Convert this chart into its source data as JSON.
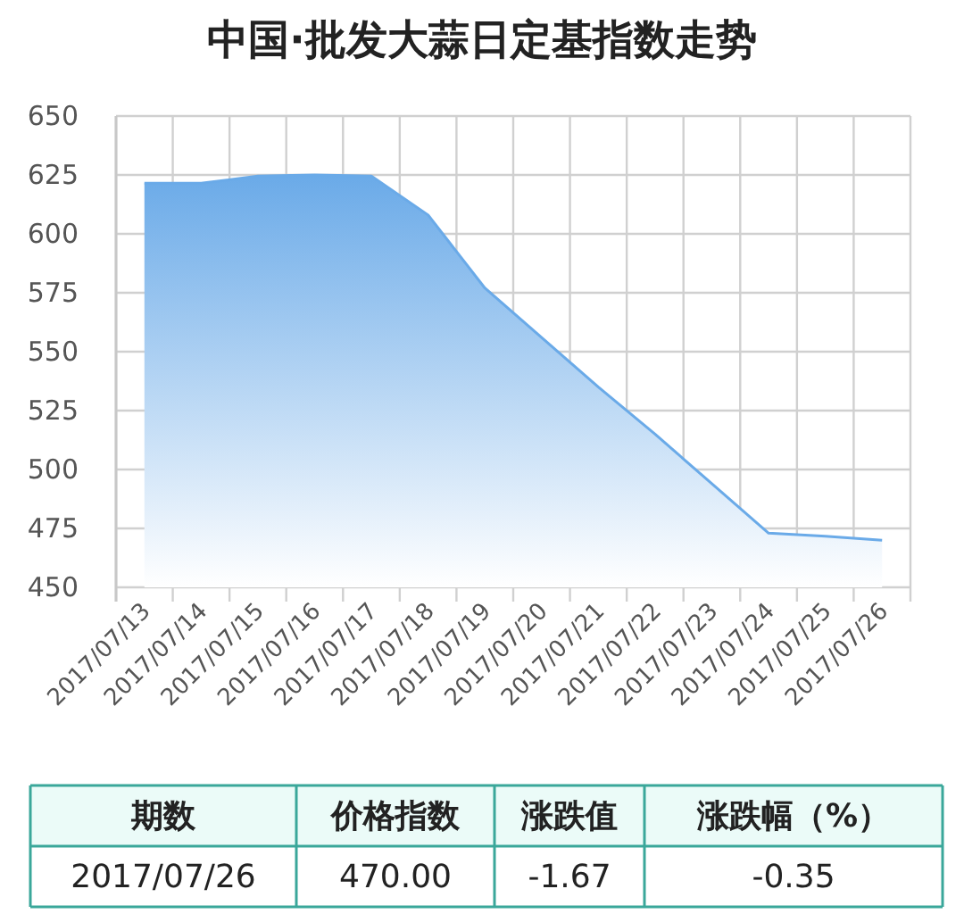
{
  "chart_data": {
    "type": "area",
    "title": "中国·批发大蒜日定基指数走势",
    "categories": [
      "2017/07/13",
      "2017/07/14",
      "2017/07/15",
      "2017/07/16",
      "2017/07/17",
      "2017/07/18",
      "2017/07/19",
      "2017/07/20",
      "2017/07/21",
      "2017/07/22",
      "2017/07/23",
      "2017/07/24",
      "2017/07/25",
      "2017/07/26"
    ],
    "values": [
      621.5,
      621.5,
      624.5,
      625,
      624.5,
      608,
      577,
      556,
      535,
      515,
      494,
      473,
      471.7,
      470
    ],
    "color": "#6aaae8",
    "ylim": [
      450,
      650
    ],
    "yticks": [
      450,
      475,
      500,
      525,
      550,
      575,
      600,
      625,
      650
    ],
    "grid": true,
    "annotations": [
      "期数",
      "价格指数",
      "涨跌值",
      "涨跌幅（%）",
      "2017/07/26",
      "470.00",
      "-1.67",
      "-0.35"
    ]
  }
}
